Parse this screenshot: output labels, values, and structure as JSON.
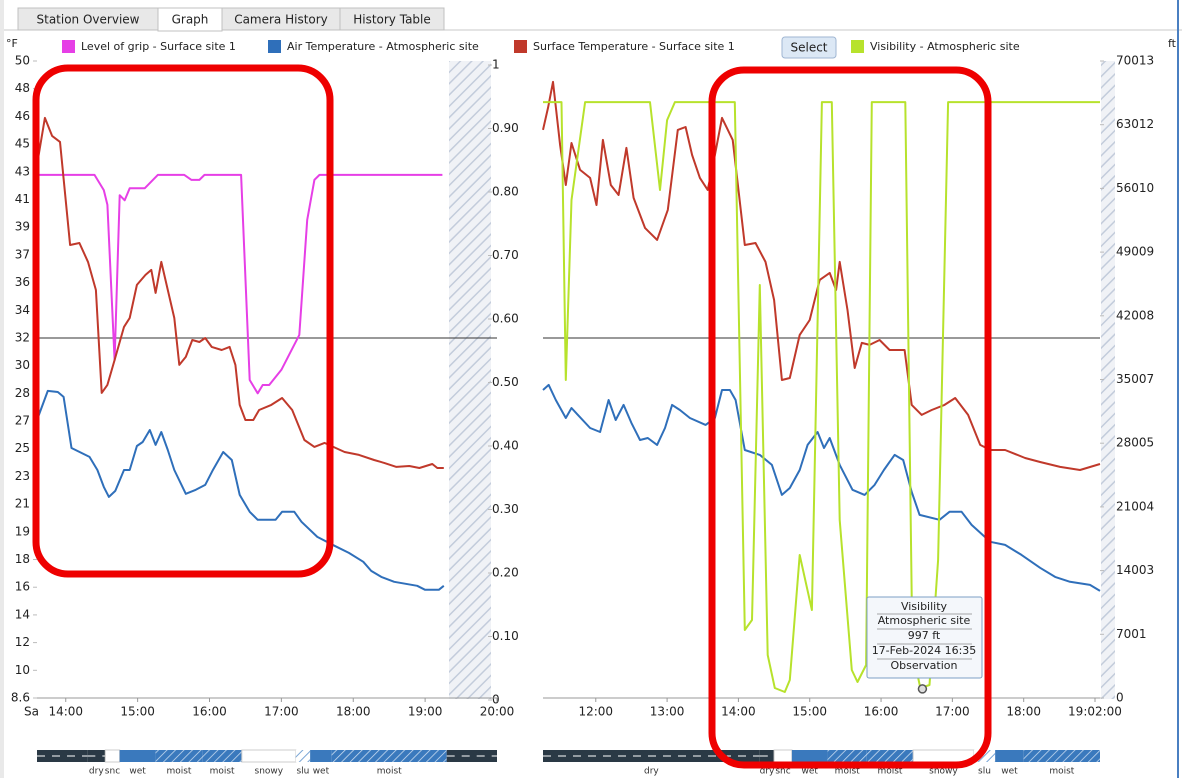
{
  "tabs": [
    "Station Overview",
    "Graph",
    "Camera History",
    "History Table"
  ],
  "select_button": "Select",
  "chart_data": {
    "type": "line",
    "y_unit": "°F",
    "y3_unit": "ft",
    "x_start_label": "Sa",
    "ylim": [
      8.6,
      50
    ],
    "yticks": [
      {
        "value": 8.6,
        "label": "8.6"
      },
      {
        "value": 10.4,
        "label": "10"
      },
      {
        "value": 12.2,
        "label": "12"
      },
      14,
      {
        "value": 15.8,
        "label": "16"
      },
      {
        "value": 17.6,
        "label": "18"
      },
      {
        "value": 19.4,
        "label": "19"
      },
      {
        "value": 21.2,
        "label": "21"
      },
      23,
      {
        "value": 24.8,
        "label": "25"
      },
      {
        "value": 26.6,
        "label": "27"
      },
      {
        "value": 28.4,
        "label": "28"
      },
      {
        "value": 30.2,
        "label": "30"
      },
      32,
      {
        "value": 33.8,
        "label": "34"
      },
      {
        "value": 35.6,
        "label": "36"
      },
      {
        "value": 37.4,
        "label": "37"
      },
      {
        "value": 39.2,
        "label": "39"
      },
      41,
      {
        "value": 42.8,
        "label": "43"
      },
      {
        "value": 44.6,
        "label": "45"
      },
      {
        "value": 46.4,
        "label": "46"
      },
      {
        "value": 48.2,
        "label": "48"
      },
      50
    ],
    "y2lim": [
      0,
      1
    ],
    "y2ticks": [
      0,
      {
        "value": 0.1,
        "label": "0.10"
      },
      {
        "value": 0.2,
        "label": "0.20"
      },
      {
        "value": 0.3,
        "label": "0.30"
      },
      {
        "value": 0.4,
        "label": "0.40"
      },
      {
        "value": 0.5,
        "label": "0.50"
      },
      {
        "value": 0.6,
        "label": "0.60"
      },
      {
        "value": 0.7,
        "label": "0.70"
      },
      {
        "value": 0.8,
        "label": "0.80"
      },
      {
        "value": 0.9,
        "label": "0.90"
      },
      1
    ],
    "y3lim": [
      0,
      70013
    ],
    "y3ticks": [
      0,
      7001,
      14003,
      21004,
      28005,
      35007,
      42008,
      49009,
      56010,
      63012,
      70013
    ],
    "reference_line": 32,
    "panels": [
      {
        "xlim": [
          13.6,
          20
        ],
        "xticks": [
          {
            "value": 14,
            "label": "14:00"
          },
          {
            "value": 15,
            "label": "15:00"
          },
          {
            "value": 16,
            "label": "16:00"
          },
          {
            "value": 17,
            "label": "17:00"
          },
          {
            "value": 18,
            "label": "18:00"
          },
          {
            "value": 19,
            "label": "19:00"
          },
          {
            "value": 20,
            "label": "20:00"
          }
        ],
        "conditions": [
          {
            "label": null,
            "from": 13.6,
            "to": 14.3,
            "style": "dark"
          },
          {
            "label": "dry",
            "from": 14.3,
            "to": 14.55,
            "style": "dark"
          },
          {
            "label": "snc",
            "from": 14.55,
            "to": 14.75,
            "style": "white"
          },
          {
            "label": "wet",
            "from": 14.75,
            "to": 15.25,
            "style": "blue"
          },
          {
            "label": "moist",
            "from": 15.25,
            "to": 15.9,
            "style": "hatch"
          },
          {
            "label": "moist",
            "from": 15.9,
            "to": 16.45,
            "style": "hatch"
          },
          {
            "label": "snowy",
            "from": 16.45,
            "to": 17.2,
            "style": "white"
          },
          {
            "label": "slu",
            "from": 17.2,
            "to": 17.4,
            "style": "light"
          },
          {
            "label": "wet",
            "from": 17.4,
            "to": 17.7,
            "style": "blue"
          },
          {
            "label": "moist",
            "from": 17.7,
            "to": 19.3,
            "style": "hatch"
          },
          {
            "label": null,
            "from": 19.3,
            "to": 20,
            "style": "dark"
          }
        ]
      },
      {
        "xlim": [
          11.26,
          19.07
        ],
        "xticks": [
          {
            "value": 12,
            "label": "12:00"
          },
          {
            "value": 13,
            "label": "13:00"
          },
          {
            "value": 14,
            "label": "14:00"
          },
          {
            "value": 15,
            "label": "15:00"
          },
          {
            "value": 16,
            "label": "16:00"
          },
          {
            "value": 17,
            "label": "17:00"
          },
          {
            "value": 18,
            "label": "18:00"
          },
          {
            "value": 19,
            "label": "19:02:00"
          }
        ],
        "conditions": [
          {
            "label": "dry",
            "from": 11.26,
            "to": 14.3,
            "style": "dark"
          },
          {
            "label": "dry",
            "from": 14.3,
            "to": 14.5,
            "style": "dark"
          },
          {
            "label": "snc",
            "from": 14.5,
            "to": 14.75,
            "style": "white"
          },
          {
            "label": "wet",
            "from": 14.75,
            "to": 15.25,
            "style": "blue"
          },
          {
            "label": "moist",
            "from": 15.25,
            "to": 15.8,
            "style": "hatch"
          },
          {
            "label": "moist",
            "from": 15.8,
            "to": 16.45,
            "style": "hatch"
          },
          {
            "label": "snowy",
            "from": 16.45,
            "to": 17.3,
            "style": "white"
          },
          {
            "label": "slu",
            "from": 17.3,
            "to": 17.6,
            "style": "light"
          },
          {
            "label": "wet",
            "from": 17.6,
            "to": 18.0,
            "style": "blue"
          },
          {
            "label": "moist",
            "from": 18.0,
            "to": 19.07,
            "style": "hatch"
          }
        ]
      }
    ],
    "series": [
      {
        "name": "Level of grip - Surface site 1",
        "color": "#e63fe6",
        "axis": "y2",
        "panels": [
          {
            "x": [
              13.6,
              14.4,
              14.53,
              14.58,
              14.68,
              14.75,
              14.82,
              14.89,
              15.1,
              15.28,
              15.65,
              15.75,
              15.86,
              15.93,
              16.44,
              16.56,
              16.67,
              16.74,
              16.83,
              17.0,
              17.25,
              17.36,
              17.46,
              17.53,
              19.24
            ],
            "values": [
              0.827,
              0.827,
              0.803,
              0.78,
              0.535,
              0.795,
              0.787,
              0.806,
              0.806,
              0.827,
              0.827,
              0.819,
              0.819,
              0.827,
              0.827,
              0.504,
              0.483,
              0.496,
              0.496,
              0.52,
              0.575,
              0.756,
              0.819,
              0.827,
              0.827
            ]
          },
          null
        ]
      },
      {
        "name": "Air Temperature - Atmospheric site",
        "color": "#2f6fba",
        "axis": "y",
        "panels": [
          {
            "x": [
              13.6,
              13.75,
              13.89,
              13.97,
              14.08,
              14.33,
              14.44,
              14.53,
              14.6,
              14.69,
              14.81,
              14.89,
              14.99,
              15.07,
              15.17,
              15.25,
              15.33,
              15.42,
              15.51,
              15.67,
              15.81,
              15.94,
              16.04,
              16.19,
              16.31,
              16.42,
              16.56,
              16.67,
              16.92,
              17.01,
              17.18,
              17.28,
              17.5,
              17.74,
              17.94,
              18.14,
              18.25,
              18.39,
              18.57,
              18.89,
              19.0,
              19.19,
              19.26
            ],
            "values": [
              26.67,
              28.56,
              28.49,
              28.17,
              24.85,
              24.27,
              23.42,
              22.32,
              21.67,
              22.06,
              23.42,
              23.42,
              24.98,
              25.24,
              26.02,
              25.05,
              25.89,
              24.72,
              23.42,
              21.87,
              22.13,
              22.45,
              23.36,
              24.59,
              24.07,
              21.8,
              20.7,
              20.18,
              20.18,
              20.7,
              20.7,
              20.05,
              19.07,
              18.49,
              18.03,
              17.45,
              16.86,
              16.47,
              16.15,
              15.89,
              15.63,
              15.63,
              15.89
            ]
          },
          {
            "x": [
              11.26,
              11.34,
              11.44,
              11.58,
              11.66,
              11.75,
              11.92,
              12.06,
              12.18,
              12.28,
              12.39,
              12.5,
              12.62,
              12.73,
              12.86,
              12.97,
              13.07,
              13.18,
              13.32,
              13.54,
              13.67,
              13.77,
              13.88,
              13.96,
              14.09,
              14.3,
              14.47,
              14.61,
              14.72,
              14.86,
              14.97,
              15.11,
              15.2,
              15.28,
              15.42,
              15.6,
              15.77,
              15.91,
              16.04,
              16.19,
              16.31,
              16.43,
              16.54,
              16.82,
              16.96,
              17.13,
              17.27,
              17.53,
              17.74,
              17.97,
              18.23,
              18.44,
              18.65,
              18.93,
              19.07
            ],
            "values": [
              28.62,
              28.95,
              27.97,
              26.8,
              27.45,
              27.0,
              26.15,
              25.89,
              27.97,
              26.67,
              27.65,
              26.48,
              25.37,
              25.5,
              25.05,
              26.15,
              27.65,
              27.32,
              26.8,
              26.35,
              26.8,
              28.62,
              28.62,
              27.97,
              24.72,
              24.4,
              23.75,
              21.8,
              22.25,
              23.42,
              25.05,
              25.89,
              24.85,
              25.5,
              23.75,
              22.13,
              21.8,
              22.45,
              23.42,
              24.4,
              24.07,
              21.99,
              20.5,
              20.18,
              20.7,
              20.7,
              19.85,
              18.75,
              18.55,
              17.9,
              17.06,
              16.47,
              16.15,
              15.95,
              15.56
            ]
          }
        ]
      },
      {
        "name": "Surface Temperature - Surface site 1",
        "color": "#c0392b",
        "axis": "y",
        "panels": [
          {
            "x": [
              13.6,
              13.71,
              13.81,
              13.92,
              14.06,
              14.19,
              14.31,
              14.42,
              14.5,
              14.58,
              14.68,
              14.81,
              14.89,
              14.99,
              15.11,
              15.19,
              15.25,
              15.33,
              15.42,
              15.51,
              15.58,
              15.67,
              15.76,
              15.86,
              15.94,
              16.03,
              16.17,
              16.28,
              16.36,
              16.42,
              16.5,
              16.61,
              16.69,
              16.86,
              17.01,
              17.15,
              17.32,
              17.46,
              17.6,
              17.88,
              18.08,
              18.29,
              18.43,
              18.6,
              18.78,
              18.92,
              19.1,
              19.17,
              19.26
            ],
            "values": [
              43.24,
              46.3,
              45.13,
              44.74,
              38.04,
              38.17,
              36.94,
              35.12,
              28.43,
              28.95,
              30.57,
              32.72,
              33.3,
              35.45,
              36.1,
              36.42,
              34.93,
              36.94,
              35.12,
              33.3,
              30.25,
              30.77,
              31.87,
              31.74,
              32.0,
              31.42,
              31.22,
              31.42,
              30.25,
              27.65,
              26.67,
              26.67,
              27.32,
              27.65,
              28.1,
              27.32,
              25.37,
              24.92,
              25.18,
              24.59,
              24.4,
              24.07,
              23.88,
              23.62,
              23.68,
              23.55,
              23.81,
              23.55,
              23.55
            ]
          },
          {
            "x": [
              11.26,
              11.33,
              11.4,
              11.5,
              11.58,
              11.66,
              11.78,
              11.92,
              12.01,
              12.1,
              12.21,
              12.32,
              12.43,
              12.53,
              12.69,
              12.86,
              13.01,
              13.15,
              13.26,
              13.35,
              13.46,
              13.57,
              13.67,
              13.77,
              13.92,
              14.09,
              14.24,
              14.38,
              14.5,
              14.61,
              14.72,
              14.86,
              15.0,
              15.14,
              15.28,
              15.37,
              15.42,
              15.53,
              15.63,
              15.73,
              15.84,
              15.98,
              16.12,
              16.33,
              16.43,
              16.57,
              16.71,
              16.89,
              17.04,
              17.22,
              17.39,
              17.53,
              17.74,
              18.02,
              18.23,
              18.51,
              18.79,
              19.07
            ],
            "values": [
              45.52,
              46.95,
              48.64,
              44.54,
              41.94,
              44.67,
              42.92,
              42.4,
              40.64,
              44.87,
              41.94,
              41.29,
              44.35,
              41.1,
              39.15,
              38.37,
              40.32,
              45.52,
              45.71,
              43.89,
              42.4,
              41.62,
              43.89,
              46.3,
              44.87,
              38.04,
              38.17,
              36.94,
              34.47,
              29.27,
              29.4,
              32.2,
              33.17,
              35.77,
              36.23,
              35.12,
              36.94,
              33.82,
              30.05,
              31.68,
              31.55,
              31.87,
              31.22,
              31.22,
              27.65,
              27.0,
              27.32,
              27.65,
              28.1,
              27.0,
              25.05,
              24.72,
              24.72,
              24.2,
              23.94,
              23.62,
              23.42,
              23.81
            ]
          }
        ]
      },
      {
        "name": "Visibility - Atmospheric site",
        "color": "#b7e22c",
        "axis": "y3",
        "panels": [
          null,
          {
            "x": [
              11.26,
              11.52,
              11.58,
              11.66,
              11.85,
              12.76,
              12.9,
              13.0,
              13.11,
              13.95,
              14.09,
              14.19,
              14.3,
              14.41,
              14.51,
              14.65,
              14.72,
              14.86,
              15.03,
              15.17,
              15.31,
              15.42,
              15.59,
              15.67,
              15.79,
              15.87,
              16.34,
              16.44,
              16.55,
              16.68,
              16.8,
              16.94,
              19.07
            ],
            "values": [
              65500,
              65500,
              34950,
              54730,
              65500,
              65500,
              55830,
              63520,
              65500,
              65500,
              7470,
              8570,
              45390,
              4730,
              1100,
              660,
              1980,
              15720,
              9670,
              65500,
              65500,
              19560,
              3080,
              1760,
              3630,
              65500,
              65500,
              5280,
              1100,
              1430,
              15170,
              65500,
              65500
            ]
          }
        ]
      }
    ],
    "tooltip": {
      "lines": [
        "Visibility",
        "Atmospheric site"
      ],
      "value": 997,
      "value_label": "997 ft",
      "x": 16.58,
      "time_label": "17-Feb-2024 16:35",
      "kind": "Observation"
    }
  }
}
